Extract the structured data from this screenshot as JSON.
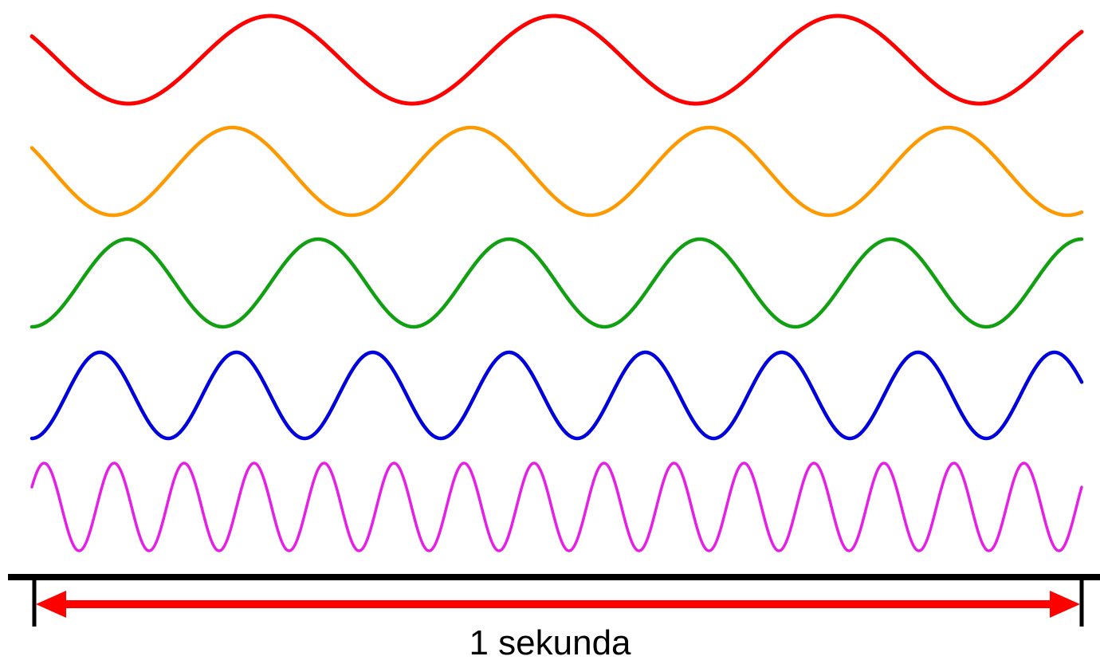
{
  "diagram": {
    "waves": [
      {
        "color": "#ff0000",
        "cycles_per_second": 3.7,
        "phase_start": "falling"
      },
      {
        "color": "#ff9900",
        "cycles_per_second": 4.4,
        "phase_start": "falling"
      },
      {
        "color": "#11a011",
        "cycles_per_second": 5.5,
        "phase_start": "trough"
      },
      {
        "color": "#0000dd",
        "cycles_per_second": 7.7,
        "phase_start": "trough"
      },
      {
        "color": "#e61ee6",
        "cycles_per_second": 15,
        "phase_start": "rising"
      }
    ],
    "timeline": {
      "bar_color": "#000000",
      "arrow_color": "#ff0000",
      "label": "1 sekunda"
    }
  }
}
